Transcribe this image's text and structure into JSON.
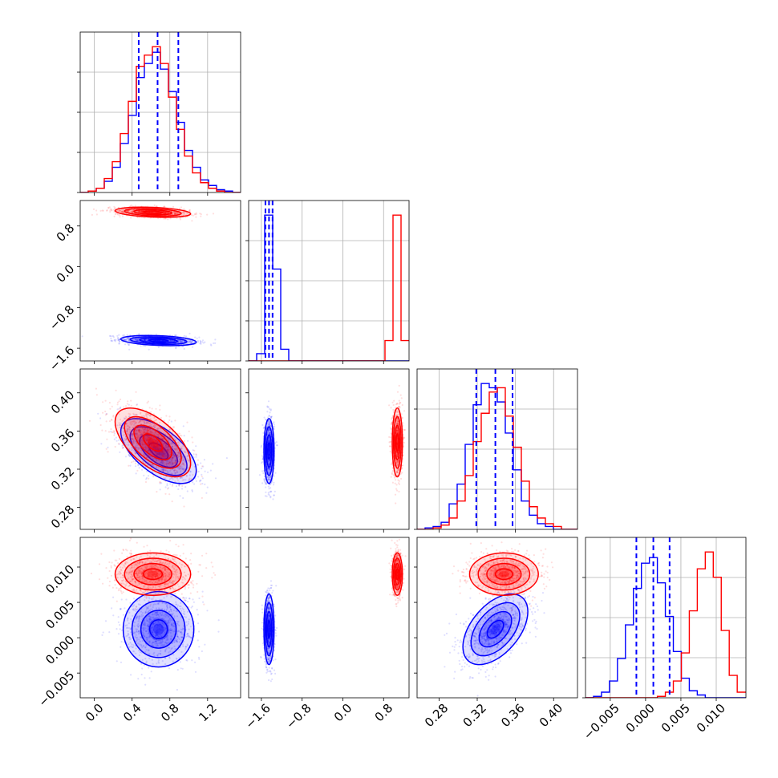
{
  "chart_data": {
    "type": "corner",
    "title": "",
    "colors": {
      "blue": "#0000ff",
      "red": "#ff0000"
    },
    "parameters": [
      {
        "range": [
          -0.15,
          1.55
        ],
        "ticks": [
          0.0,
          0.4,
          0.8,
          1.2
        ],
        "tick_labels": [
          "0.0",
          "0.4",
          "0.8",
          "1.2"
        ]
      },
      {
        "range": [
          -1.85,
          1.3
        ],
        "ticks": [
          -1.6,
          -0.8,
          0.0,
          0.8
        ],
        "tick_labels": [
          "−1.6",
          "−0.8",
          "0.0",
          "0.8"
        ]
      },
      {
        "range": [
          0.257,
          0.425
        ],
        "ticks": [
          0.28,
          0.32,
          0.36,
          0.4
        ],
        "tick_labels": [
          "0.28",
          "0.32",
          "0.36",
          "0.40"
        ]
      },
      {
        "range": [
          -0.0085,
          0.0142
        ],
        "ticks": [
          -0.005,
          0.0,
          0.005,
          0.01
        ],
        "tick_labels": [
          "−0.005",
          "0.000",
          "0.005",
          "0.010"
        ]
      }
    ],
    "quantile_lines": [
      [
        0.47,
        0.67,
        0.89
      ],
      [
        -1.52,
        -1.45,
        -1.38
      ],
      [
        0.319,
        0.339,
        0.357
      ],
      [
        -0.0013,
        0.0011,
        0.0034
      ]
    ],
    "series": [
      {
        "color": "blue",
        "mean": [
          0.68,
          -1.45,
          0.339,
          0.0012
        ],
        "std": [
          0.2,
          0.05,
          0.017,
          0.0025
        ],
        "corr": [
          [
            0,
            1,
            -0.3
          ],
          [
            0,
            2,
            -0.6
          ],
          [
            2,
            3,
            0.5
          ]
        ]
      },
      {
        "color": "red",
        "mean": [
          0.62,
          1.07,
          0.348,
          0.009
        ],
        "std": [
          0.2,
          0.05,
          0.018,
          0.0015
        ],
        "corr": [
          [
            0,
            1,
            -0.3
          ],
          [
            0,
            2,
            -0.6
          ]
        ]
      }
    ],
    "histograms": [
      {
        "edges": [
          -0.15,
          -0.065,
          0.02,
          0.105,
          0.19,
          0.275,
          0.36,
          0.445,
          0.53,
          0.615,
          0.7,
          0.785,
          0.87,
          0.955,
          1.04,
          1.125,
          1.21,
          1.295,
          1.38,
          1.465,
          1.55
        ],
        "blue": [
          0,
          1,
          3,
          8,
          18,
          35,
          55,
          82,
          92,
          100,
          88,
          72,
          50,
          30,
          18,
          9,
          5,
          2,
          1,
          0
        ],
        "red": [
          0,
          1,
          3,
          10,
          22,
          42,
          65,
          90,
          98,
          104,
          92,
          68,
          45,
          26,
          14,
          7,
          3,
          1,
          0,
          0
        ]
      },
      {
        "edges": [
          -1.85,
          -1.6925,
          -1.535,
          -1.3775,
          -1.22,
          -1.0625,
          -0.905,
          -0.7475,
          -0.59,
          -0.4325,
          -0.275,
          -0.1175,
          0.04,
          0.1975,
          0.355,
          0.5125,
          0.67,
          0.8275,
          0.985,
          1.1425,
          1.3
        ],
        "blue": [
          0,
          5,
          100,
          63,
          8,
          0,
          0,
          0,
          0,
          0,
          0,
          0,
          0,
          0,
          0,
          0,
          0,
          0,
          0,
          0
        ],
        "red": [
          0,
          0,
          0,
          0,
          0,
          0,
          0,
          0,
          0,
          0,
          0,
          0,
          0,
          0,
          0,
          0,
          0,
          14,
          100,
          14
        ]
      },
      {
        "edges": [
          0.257,
          0.2654,
          0.2738,
          0.2822,
          0.2906,
          0.299,
          0.3074,
          0.3158,
          0.3242,
          0.3326,
          0.341,
          0.3494,
          0.3578,
          0.3662,
          0.3746,
          0.383,
          0.3914,
          0.3998,
          0.4082,
          0.4166,
          0.425
        ],
        "blue": [
          0,
          1,
          2,
          5,
          18,
          32,
          60,
          88,
          103,
          100,
          90,
          68,
          42,
          20,
          10,
          4,
          2,
          0,
          0,
          0
        ],
        "red": [
          0,
          0,
          1,
          3,
          8,
          20,
          38,
          62,
          82,
          97,
          100,
          80,
          58,
          34,
          16,
          8,
          4,
          2,
          0,
          0
        ]
      },
      {
        "edges": [
          -0.0085,
          -0.00737,
          -0.00624,
          -0.00511,
          -0.00398,
          -0.00285,
          -0.00172,
          -0.00059,
          0.00054,
          0.00167,
          0.0028,
          0.00393,
          0.00506,
          0.00619,
          0.00732,
          0.00845,
          0.00958,
          0.01071,
          0.01184,
          0.01297,
          0.0142
        ],
        "blue": [
          0,
          1,
          4,
          12,
          28,
          52,
          78,
          96,
          100,
          82,
          58,
          33,
          14,
          5,
          2,
          0,
          0,
          0,
          0,
          0
        ],
        "red": [
          0,
          0,
          0,
          0,
          0,
          0,
          0,
          0,
          0,
          1,
          4,
          12,
          32,
          62,
          92,
          104,
          86,
          48,
          16,
          4
        ]
      }
    ]
  }
}
